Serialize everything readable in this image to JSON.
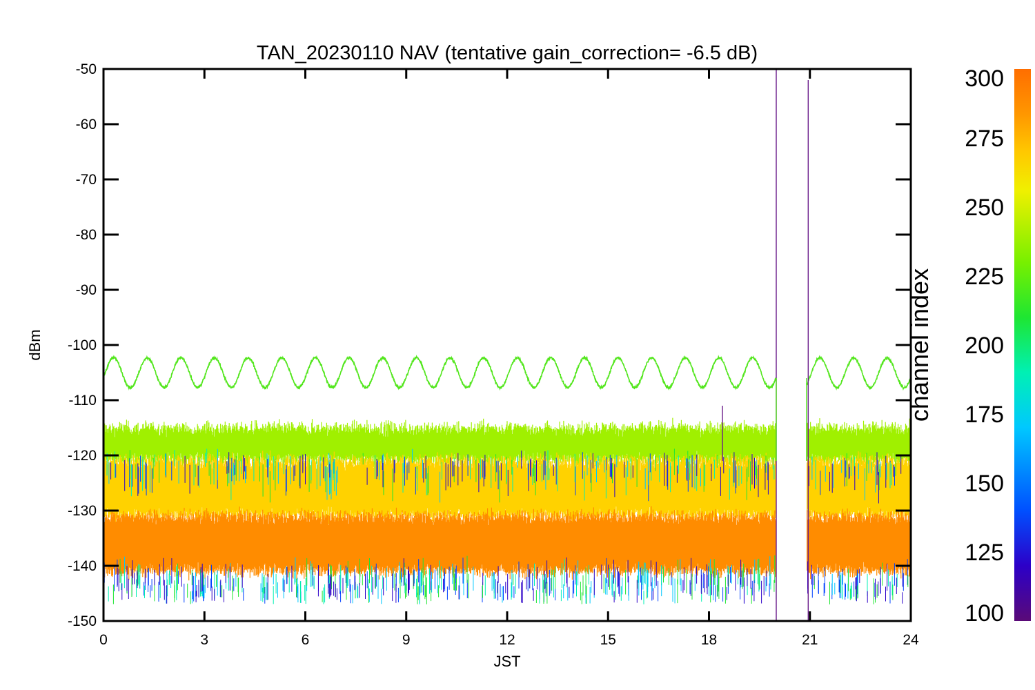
{
  "chart_data": {
    "type": "line",
    "title": "TAN_20230110 NAV (tentative gain_correction= -6.5 dB)",
    "xlabel": "JST",
    "ylabel": "dBm",
    "xlim": [
      0,
      24
    ],
    "ylim": [
      -150,
      -50
    ],
    "x_ticks": [
      0,
      3,
      6,
      9,
      12,
      15,
      18,
      21,
      24
    ],
    "y_ticks": [
      -50,
      -60,
      -70,
      -80,
      -90,
      -100,
      -110,
      -120,
      -130,
      -140,
      -150
    ],
    "data_gap": [
      20.0,
      20.9
    ],
    "colorbar": {
      "title": "channel index",
      "range": [
        100,
        300
      ],
      "ticks": [
        300,
        275,
        250,
        225,
        200,
        175,
        150,
        125,
        100
      ],
      "colormap": [
        "#5a0a78",
        "#2c00c8",
        "#0050ff",
        "#00c8ff",
        "#00f0b4",
        "#1ee632",
        "#78f000",
        "#f0f000",
        "#ffc800",
        "#ff9600",
        "#ff6e00"
      ]
    },
    "series": [
      {
        "channel": 240,
        "color": "#52e61c",
        "description_values": {
          "mean": -105,
          "amplitude": 2.7,
          "period_hours": 1.0
        },
        "noise_std": 0.4
      },
      {
        "channel": 255,
        "color": "#a0f000",
        "band": [
          -121,
          -115
        ],
        "note": "upper noise envelope"
      },
      {
        "channel": 275,
        "color": "#ffd200",
        "band": [
          -131,
          -121
        ]
      },
      {
        "channel": 295,
        "color": "#ff8c00",
        "band": [
          -141,
          -131
        ]
      }
    ],
    "spikes": [
      {
        "x": 20.0,
        "from": -150,
        "to": -50,
        "color": "#6a1b8a"
      },
      {
        "x": 20.95,
        "from": -150,
        "to": -52,
        "color": "#6a1b8a"
      },
      {
        "x": 18.4,
        "from": -121,
        "to": -111,
        "color": "#6a1b8a"
      }
    ]
  }
}
